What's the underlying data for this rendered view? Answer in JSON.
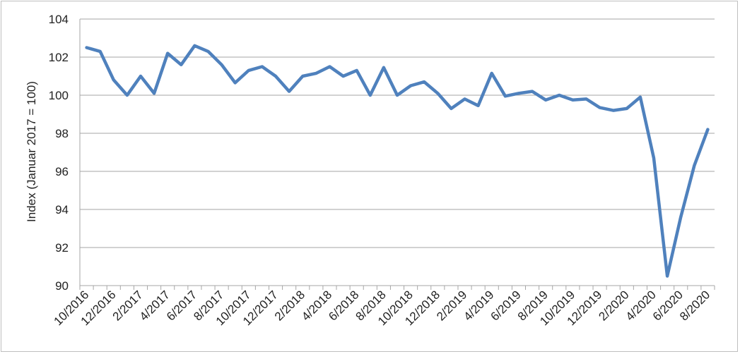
{
  "chart_data": {
    "type": "line",
    "ylabel": "Index (Januar 2017 = 100)",
    "xlabel": "",
    "title": "",
    "ylim": [
      90,
      104
    ],
    "yticks": [
      90,
      92,
      94,
      96,
      98,
      100,
      102,
      104
    ],
    "grid": "horizontal",
    "x": [
      "10/2016",
      "11/2016",
      "12/2016",
      "1/2017",
      "2/2017",
      "3/2017",
      "4/2017",
      "5/2017",
      "6/2017",
      "7/2017",
      "8/2017",
      "9/2017",
      "10/2017",
      "11/2017",
      "12/2017",
      "1/2018",
      "2/2018",
      "3/2018",
      "4/2018",
      "5/2018",
      "6/2018",
      "7/2018",
      "8/2018",
      "9/2018",
      "10/2018",
      "11/2018",
      "12/2018",
      "1/2019",
      "2/2019",
      "3/2019",
      "4/2019",
      "5/2019",
      "6/2019",
      "7/2019",
      "8/2019",
      "9/2019",
      "10/2019",
      "11/2019",
      "12/2019",
      "1/2020",
      "2/2020",
      "3/2020",
      "4/2020",
      "5/2020",
      "6/2020",
      "7/2020",
      "8/2020"
    ],
    "x_tick_labels": [
      "10/2016",
      "12/2016",
      "2/2017",
      "4/2017",
      "6/2017",
      "8/2017",
      "10/2017",
      "12/2017",
      "2/2018",
      "4/2018",
      "6/2018",
      "8/2018",
      "10/2018",
      "12/2018",
      "2/2019",
      "4/2019",
      "6/2019",
      "8/2019",
      "10/2019",
      "12/2019",
      "2/2020",
      "4/2020",
      "6/2020",
      "8/2020"
    ],
    "series": [
      {
        "color": "#4f81bd",
        "values": [
          102.5,
          102.3,
          100.8,
          100.0,
          101.0,
          100.1,
          102.2,
          101.6,
          102.6,
          102.3,
          101.6,
          100.65,
          101.3,
          101.5,
          101.0,
          100.2,
          101.0,
          101.15,
          101.5,
          101.0,
          101.3,
          100.0,
          101.45,
          100.0,
          100.5,
          100.7,
          100.1,
          99.3,
          99.8,
          99.45,
          101.15,
          99.95,
          100.1,
          100.2,
          99.75,
          100.0,
          99.75,
          99.8,
          99.35,
          99.2,
          99.3,
          99.9,
          96.7,
          90.5,
          93.6,
          96.3,
          98.2
        ]
      }
    ]
  }
}
